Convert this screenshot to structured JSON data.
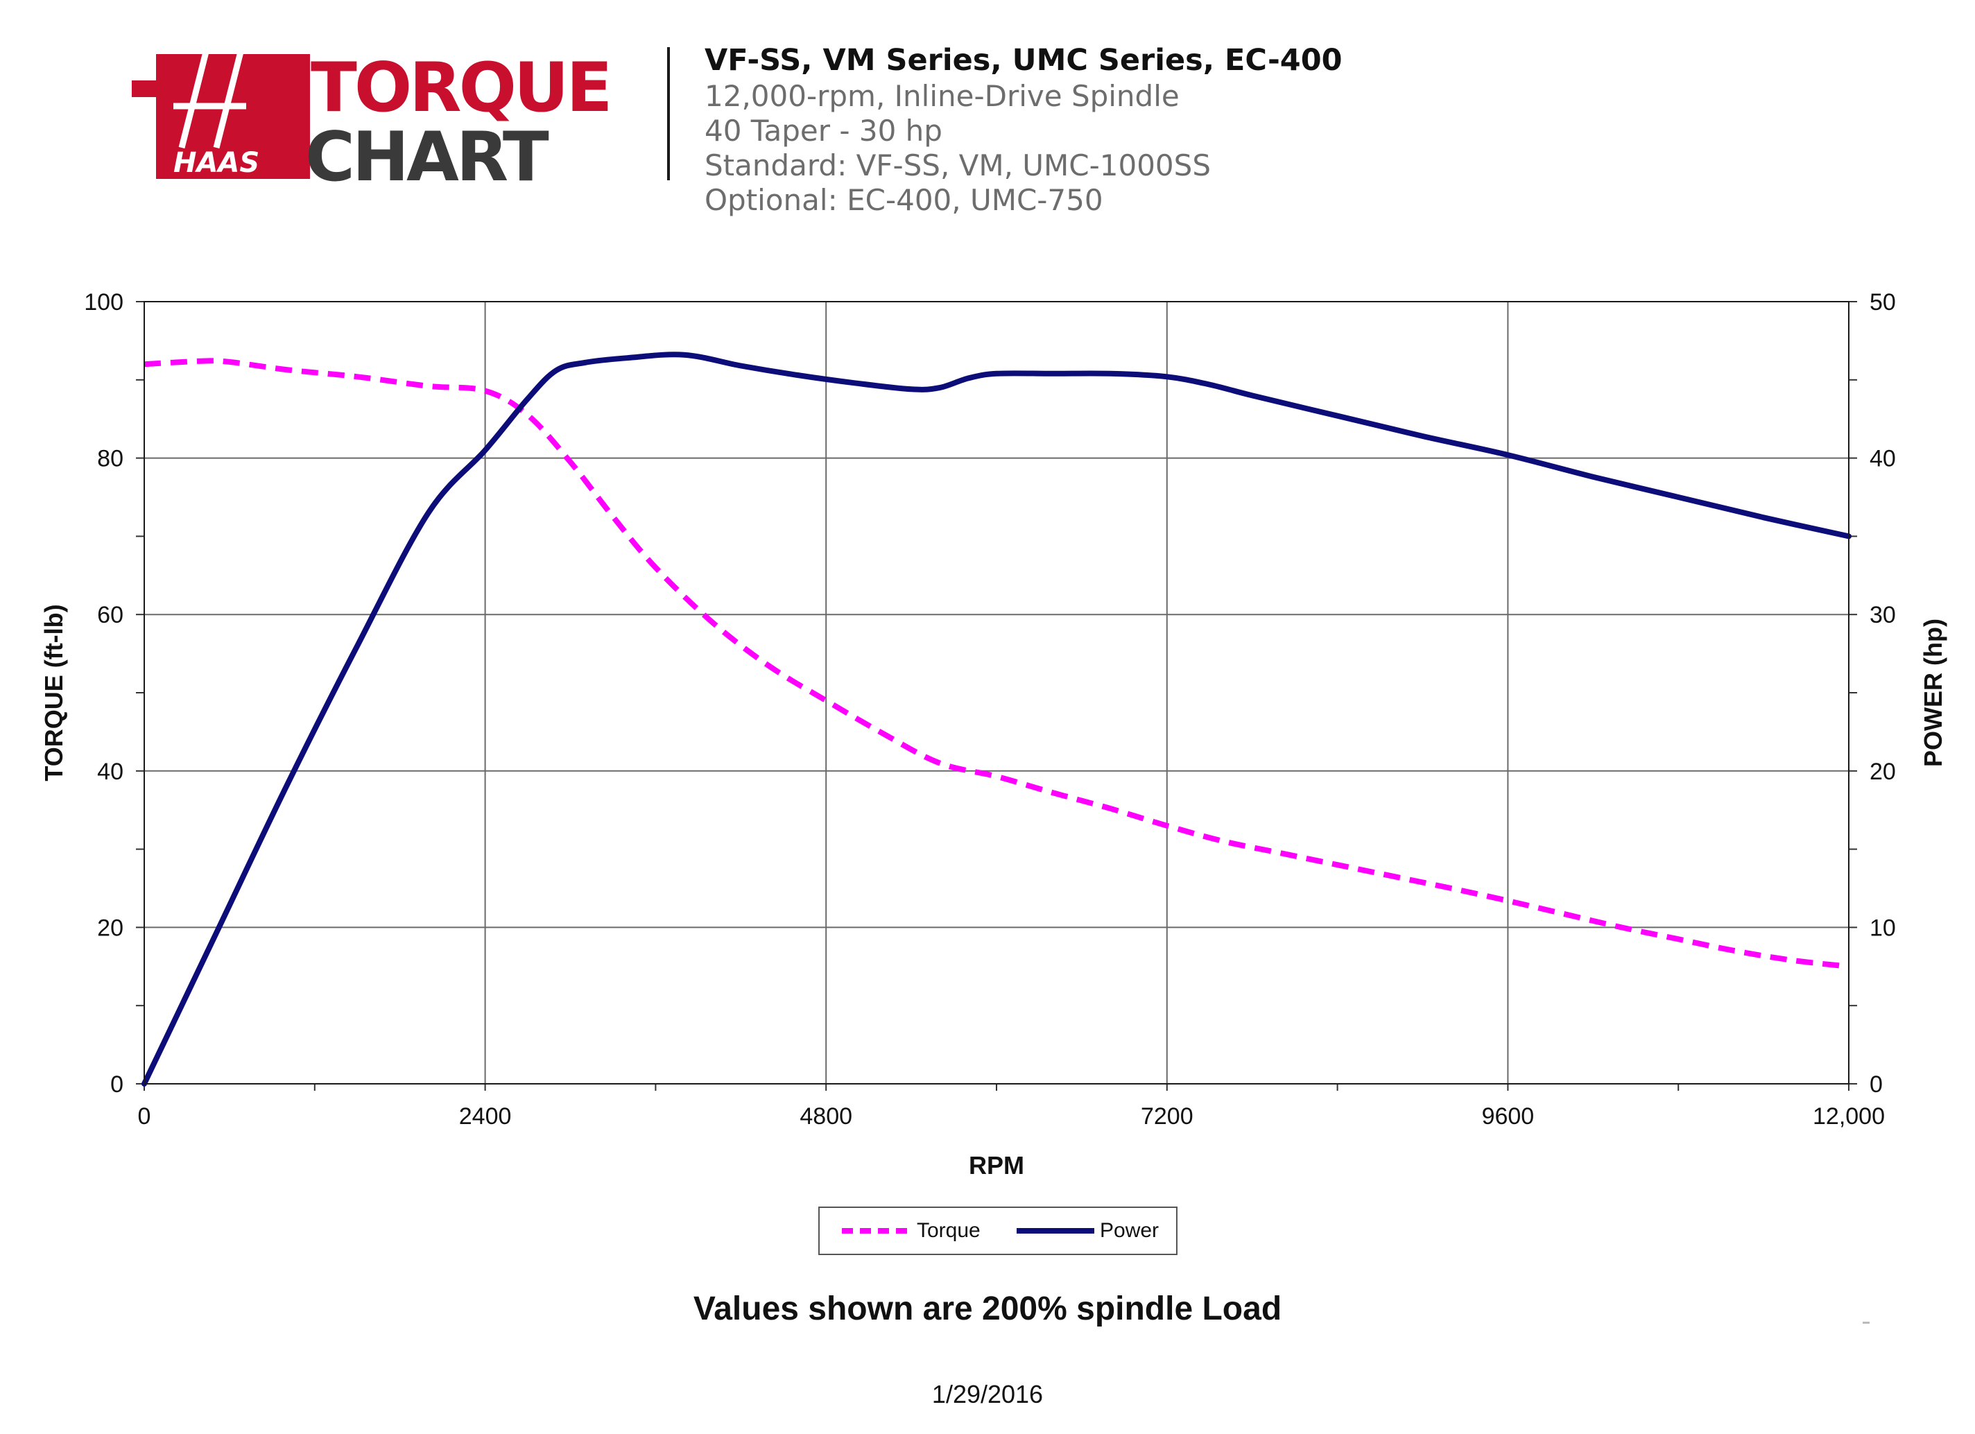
{
  "header": {
    "logo": {
      "brand": "HAAS",
      "title_line1": "TORQUE",
      "title_line2": "CHART"
    },
    "title": "VF-SS, VM Series, UMC Series, EC-400",
    "lines": [
      "12,000-rpm, Inline-Drive Spindle",
      "40 Taper - 30 hp",
      "Standard: VF-SS, VM, UMC-1000SS",
      "Optional: EC-400, UMC-750"
    ]
  },
  "chart_data": {
    "type": "line",
    "title": "",
    "xlabel": "RPM",
    "ylabel": "TORQUE (ft-lb)",
    "y2label": "POWER (hp)",
    "xlim": [
      0,
      12000
    ],
    "ylim": [
      0,
      100
    ],
    "y2lim": [
      0,
      50
    ],
    "x_ticks": [
      0,
      2400,
      4800,
      7200,
      9600,
      12000
    ],
    "x_tick_labels": [
      "0",
      "2400",
      "4800",
      "7200",
      "9600",
      "12,000"
    ],
    "x_minor_ticks": [
      1200,
      3600,
      6000,
      8400,
      10800
    ],
    "y_ticks": [
      0,
      20,
      40,
      60,
      80,
      100
    ],
    "y_tick_labels": [
      "0",
      "20",
      "40",
      "60",
      "80",
      "100"
    ],
    "y_minor_ticks": [
      10,
      30,
      50,
      70,
      90
    ],
    "y2_ticks": [
      0,
      10,
      20,
      30,
      40,
      50
    ],
    "y2_tick_labels": [
      "0",
      "10",
      "20",
      "30",
      "40",
      "50"
    ],
    "grid": true,
    "legend_position": "bottom-center",
    "series": [
      {
        "name": "Torque",
        "axis": "left",
        "style": "dashed",
        "color": "#ff00ff",
        "x": [
          0,
          400,
          600,
          1000,
          1500,
          2000,
          2400,
          2700,
          3000,
          3300,
          3600,
          4000,
          4400,
          4800,
          5200,
          5600,
          6000,
          6400,
          6800,
          7200,
          7600,
          8000,
          8400,
          8800,
          9200,
          9600,
          10000,
          10400,
          10800,
          11200,
          11600,
          12000
        ],
        "y": [
          92,
          92.4,
          92.3,
          91.3,
          90.4,
          89.2,
          88.6,
          85.5,
          79.5,
          72.5,
          66,
          59,
          53.4,
          49,
          44.8,
          41,
          39.3,
          37.2,
          35.2,
          33,
          31,
          29.5,
          28,
          26.5,
          25,
          23.4,
          21.7,
          20,
          18.5,
          17,
          15.8,
          15
        ]
      },
      {
        "name": "Power",
        "axis": "right",
        "style": "solid",
        "color": "#0d0d7a",
        "x": [
          0,
          500,
          1000,
          1500,
          2000,
          2400,
          2700,
          2900,
          3100,
          3400,
          3800,
          4200,
          4600,
          5000,
          5400,
          5600,
          5800,
          6000,
          6400,
          6800,
          7200,
          7500,
          7800,
          8400,
          9000,
          9600,
          10200,
          10800,
          11400,
          12000
        ],
        "y": [
          0,
          9.5,
          19,
          28,
          36.5,
          40.5,
          43.8,
          45.6,
          46.1,
          46.4,
          46.6,
          45.9,
          45.3,
          44.8,
          44.4,
          44.5,
          45.1,
          45.4,
          45.4,
          45.4,
          45.2,
          44.7,
          44,
          42.7,
          41.4,
          40.2,
          38.8,
          37.5,
          36.2,
          35
        ]
      }
    ]
  },
  "footnote": "Values shown are 200% spindle Load",
  "date": "1/29/2016"
}
